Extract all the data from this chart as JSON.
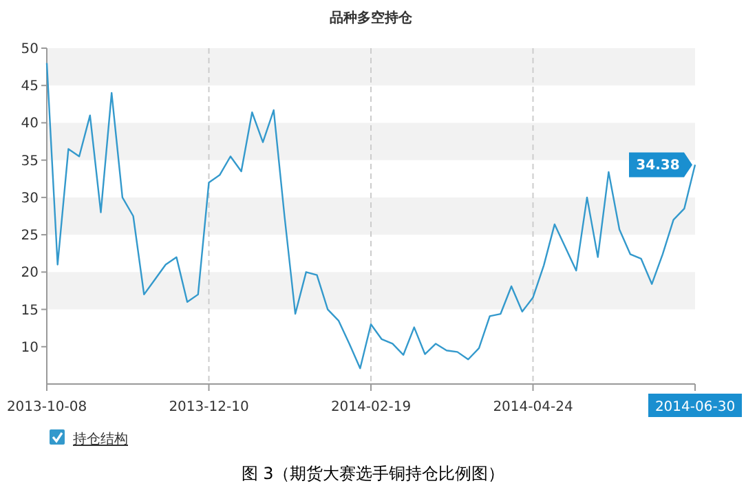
{
  "chart_data": {
    "type": "line",
    "title": "品种多空持仓",
    "categories": [
      "2013-10-08",
      null,
      null,
      null,
      null,
      null,
      null,
      null,
      null,
      null,
      null,
      null,
      null,
      null,
      null,
      "2013-12-10",
      null,
      null,
      null,
      null,
      null,
      null,
      null,
      null,
      null,
      null,
      null,
      null,
      null,
      null,
      "2014-02-19",
      null,
      null,
      null,
      null,
      null,
      null,
      null,
      null,
      null,
      null,
      null,
      null,
      null,
      null,
      "2014-04-24",
      null,
      null,
      null,
      null,
      null,
      null,
      null,
      null,
      null,
      null,
      null,
      null,
      null,
      null,
      "2014-06-30"
    ],
    "series": [
      {
        "name": "持仓结构",
        "color": "#3399cc",
        "values": [
          48,
          21,
          36.5,
          35.5,
          41,
          28,
          44,
          30,
          27.5,
          17,
          19,
          21,
          22,
          16,
          17,
          32,
          33,
          35.5,
          33.5,
          41.4,
          37.4,
          41.7,
          27.5,
          14.4,
          20,
          19.6,
          15,
          13.5,
          10.4,
          7.1,
          13,
          11,
          10.4,
          8.9,
          12.6,
          9,
          10.4,
          9.5,
          9.3,
          8.3,
          9.8,
          14.1,
          14.4,
          18.1,
          14.7,
          16.6,
          20.9,
          26.4,
          23.3,
          20.2,
          30,
          22,
          33.4,
          25.7,
          22.4,
          21.8,
          18.4,
          22.4,
          27,
          28.5,
          34.38
        ]
      }
    ],
    "ylim": [
      5,
      50
    ],
    "yticks": [
      10,
      15,
      20,
      25,
      30,
      35,
      40,
      45,
      50
    ],
    "grid": true,
    "legend": "bottom left",
    "marker": "none",
    "line_style": "solid",
    "annotations": [
      {
        "text": "34.38",
        "x": "2014-06-30",
        "y": 34.38
      },
      "图 3（期货大赛选手铜持仓比例图）"
    ]
  }
}
